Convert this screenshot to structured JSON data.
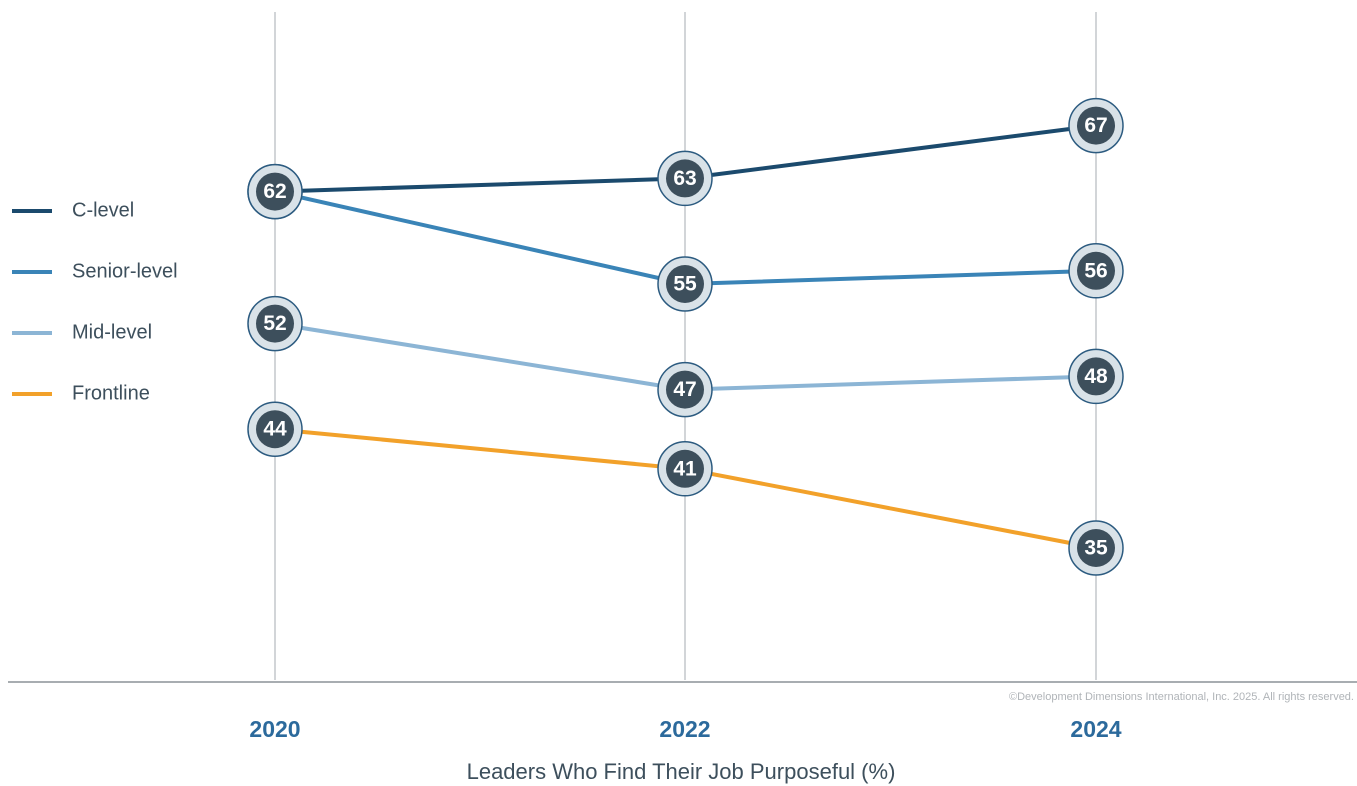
{
  "chart_data": {
    "type": "line",
    "xlabel": "Leaders Who Find Their Job Purposeful (%)",
    "footnote": "©Development Dimensions International, Inc. 2025. All rights reserved.",
    "categories": [
      "2020",
      "2022",
      "2024"
    ],
    "series": [
      {
        "name": "C-level",
        "color": "#1b4a6d",
        "values": [
          62,
          63,
          67
        ]
      },
      {
        "name": "Senior-level",
        "color": "#3a84b7",
        "values": [
          62,
          55,
          56
        ]
      },
      {
        "name": "Mid-level",
        "color": "#8cb5d5",
        "values": [
          52,
          47,
          48
        ]
      },
      {
        "name": "Frontline",
        "color": "#f2a12a",
        "values": [
          44,
          41,
          35
        ]
      }
    ],
    "ylim": [
      25,
      75
    ],
    "legend": "left"
  }
}
